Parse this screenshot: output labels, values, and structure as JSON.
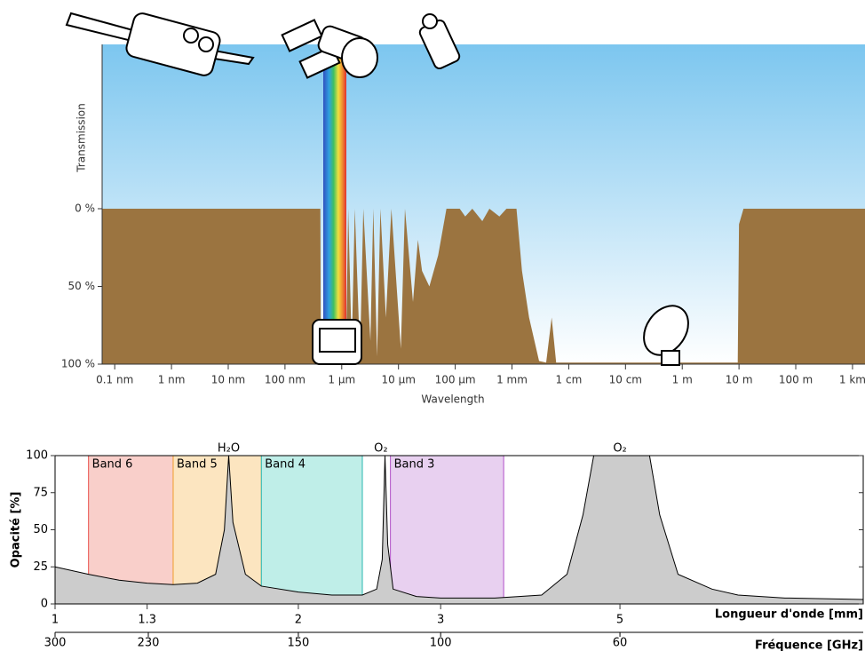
{
  "chart_data": [
    {
      "type": "area",
      "y_label": "Transmission",
      "x_label": "Wavelength",
      "color": "#9b7440",
      "log_x": true,
      "xlim": [
        6e-11,
        1660
      ],
      "ylim": [
        100,
        0
      ],
      "xticks": [
        {
          "value": 1e-10,
          "label": "0.1 nm"
        },
        {
          "value": 1e-09,
          "label": "1 nm"
        },
        {
          "value": 1e-08,
          "label": "10 nm"
        },
        {
          "value": 1e-07,
          "label": "100 nm"
        },
        {
          "value": 1e-06,
          "label": "1 µm"
        },
        {
          "value": 1e-05,
          "label": "10 µm"
        },
        {
          "value": 0.0001,
          "label": "100 µm"
        },
        {
          "value": 0.001,
          "label": "1 mm"
        },
        {
          "value": 0.01,
          "label": "1 cm"
        },
        {
          "value": 0.1,
          "label": "10 cm"
        },
        {
          "value": 1,
          "label": "1 m"
        },
        {
          "value": 10,
          "label": "10 m"
        },
        {
          "value": 100,
          "label": "100 m"
        },
        {
          "value": 1000,
          "label": "1 km"
        }
      ],
      "yticks": [
        {
          "value": 0,
          "label": "0 %"
        },
        {
          "value": 50,
          "label": "50 %"
        },
        {
          "value": 100,
          "label": "100 %"
        }
      ],
      "x": [
        6e-11,
        4.2e-07,
        4.3e-07,
        1.05e-06,
        1.1e-06,
        1.2e-06,
        1.3e-06,
        1.5e-06,
        1.7e-06,
        2.1e-06,
        2.4e-06,
        3.2e-06,
        3.6e-06,
        4.2e-06,
        4.8e-06,
        6e-06,
        7.5e-06,
        1.1e-05,
        1.3e-05,
        1.8e-05,
        2.2e-05,
        2.6e-05,
        3.5e-05,
        5e-05,
        7e-05,
        0.00012,
        0.00015,
        0.0002,
        0.0003,
        0.0004,
        0.0006,
        0.0008,
        0.0012,
        0.0015,
        0.002,
        0.003,
        0.004,
        0.005,
        0.006,
        0.012,
        9.5,
        10,
        12,
        1660
      ],
      "values": [
        0,
        0,
        100,
        100,
        0,
        85,
        0,
        90,
        0,
        95,
        0,
        85,
        0,
        95,
        0,
        70,
        0,
        90,
        0,
        60,
        20,
        40,
        50,
        30,
        0,
        0,
        5,
        0,
        8,
        0,
        5,
        0,
        0,
        40,
        70,
        98,
        99,
        70,
        99,
        99,
        99,
        10,
        0,
        0
      ]
    },
    {
      "type": "area",
      "y_label": "Opacité [%]",
      "x_label": "Longueur d'onde [mm]",
      "x2_label": "Fréquence [GHz]",
      "color": "#cccccc",
      "log_x": true,
      "xlim": [
        1,
        10
      ],
      "ylim": [
        0,
        100
      ],
      "xticks": [
        1,
        1.3,
        2,
        3,
        5
      ],
      "yticks": [
        0,
        25,
        50,
        75,
        100
      ],
      "x2lim": [
        300,
        30
      ],
      "x2ticks": [
        300,
        230,
        150,
        100,
        60
      ],
      "bands": [
        {
          "name": "Band 6",
          "range": [
            1.1,
            1.4
          ],
          "color": "#e8504a",
          "fill": "#f9cfca"
        },
        {
          "name": "Band 5",
          "range": [
            1.4,
            1.8
          ],
          "color": "#f0a030",
          "fill": "#fce5c0"
        },
        {
          "name": "Band 4",
          "range": [
            1.8,
            2.4
          ],
          "color": "#2bb8b0",
          "fill": "#bfeee8"
        },
        {
          "name": "Band 3",
          "range": [
            2.6,
            3.59
          ],
          "color": "#b050c8",
          "fill": "#e8d0f0"
        }
      ],
      "annotations": [
        {
          "text": "H₂O",
          "x": 1.64
        },
        {
          "text": "O₂",
          "x": 2.53
        },
        {
          "text": "O₂",
          "x": 5.0
        }
      ],
      "x": [
        1,
        1.1,
        1.2,
        1.3,
        1.4,
        1.5,
        1.58,
        1.62,
        1.64,
        1.66,
        1.72,
        1.8,
        2,
        2.2,
        2.4,
        2.5,
        2.54,
        2.56,
        2.58,
        2.62,
        2.8,
        3,
        3.5,
        4,
        4.3,
        4.5,
        4.64,
        5.44,
        5.6,
        5.9,
        6.5,
        7,
        8,
        10
      ],
      "values": [
        25,
        20,
        16,
        14,
        13,
        14,
        20,
        50,
        100,
        55,
        20,
        12,
        8,
        6,
        6,
        10,
        30,
        100,
        40,
        10,
        5,
        4,
        4,
        6,
        20,
        60,
        100,
        100,
        60,
        20,
        10,
        6,
        4,
        3
      ]
    }
  ]
}
